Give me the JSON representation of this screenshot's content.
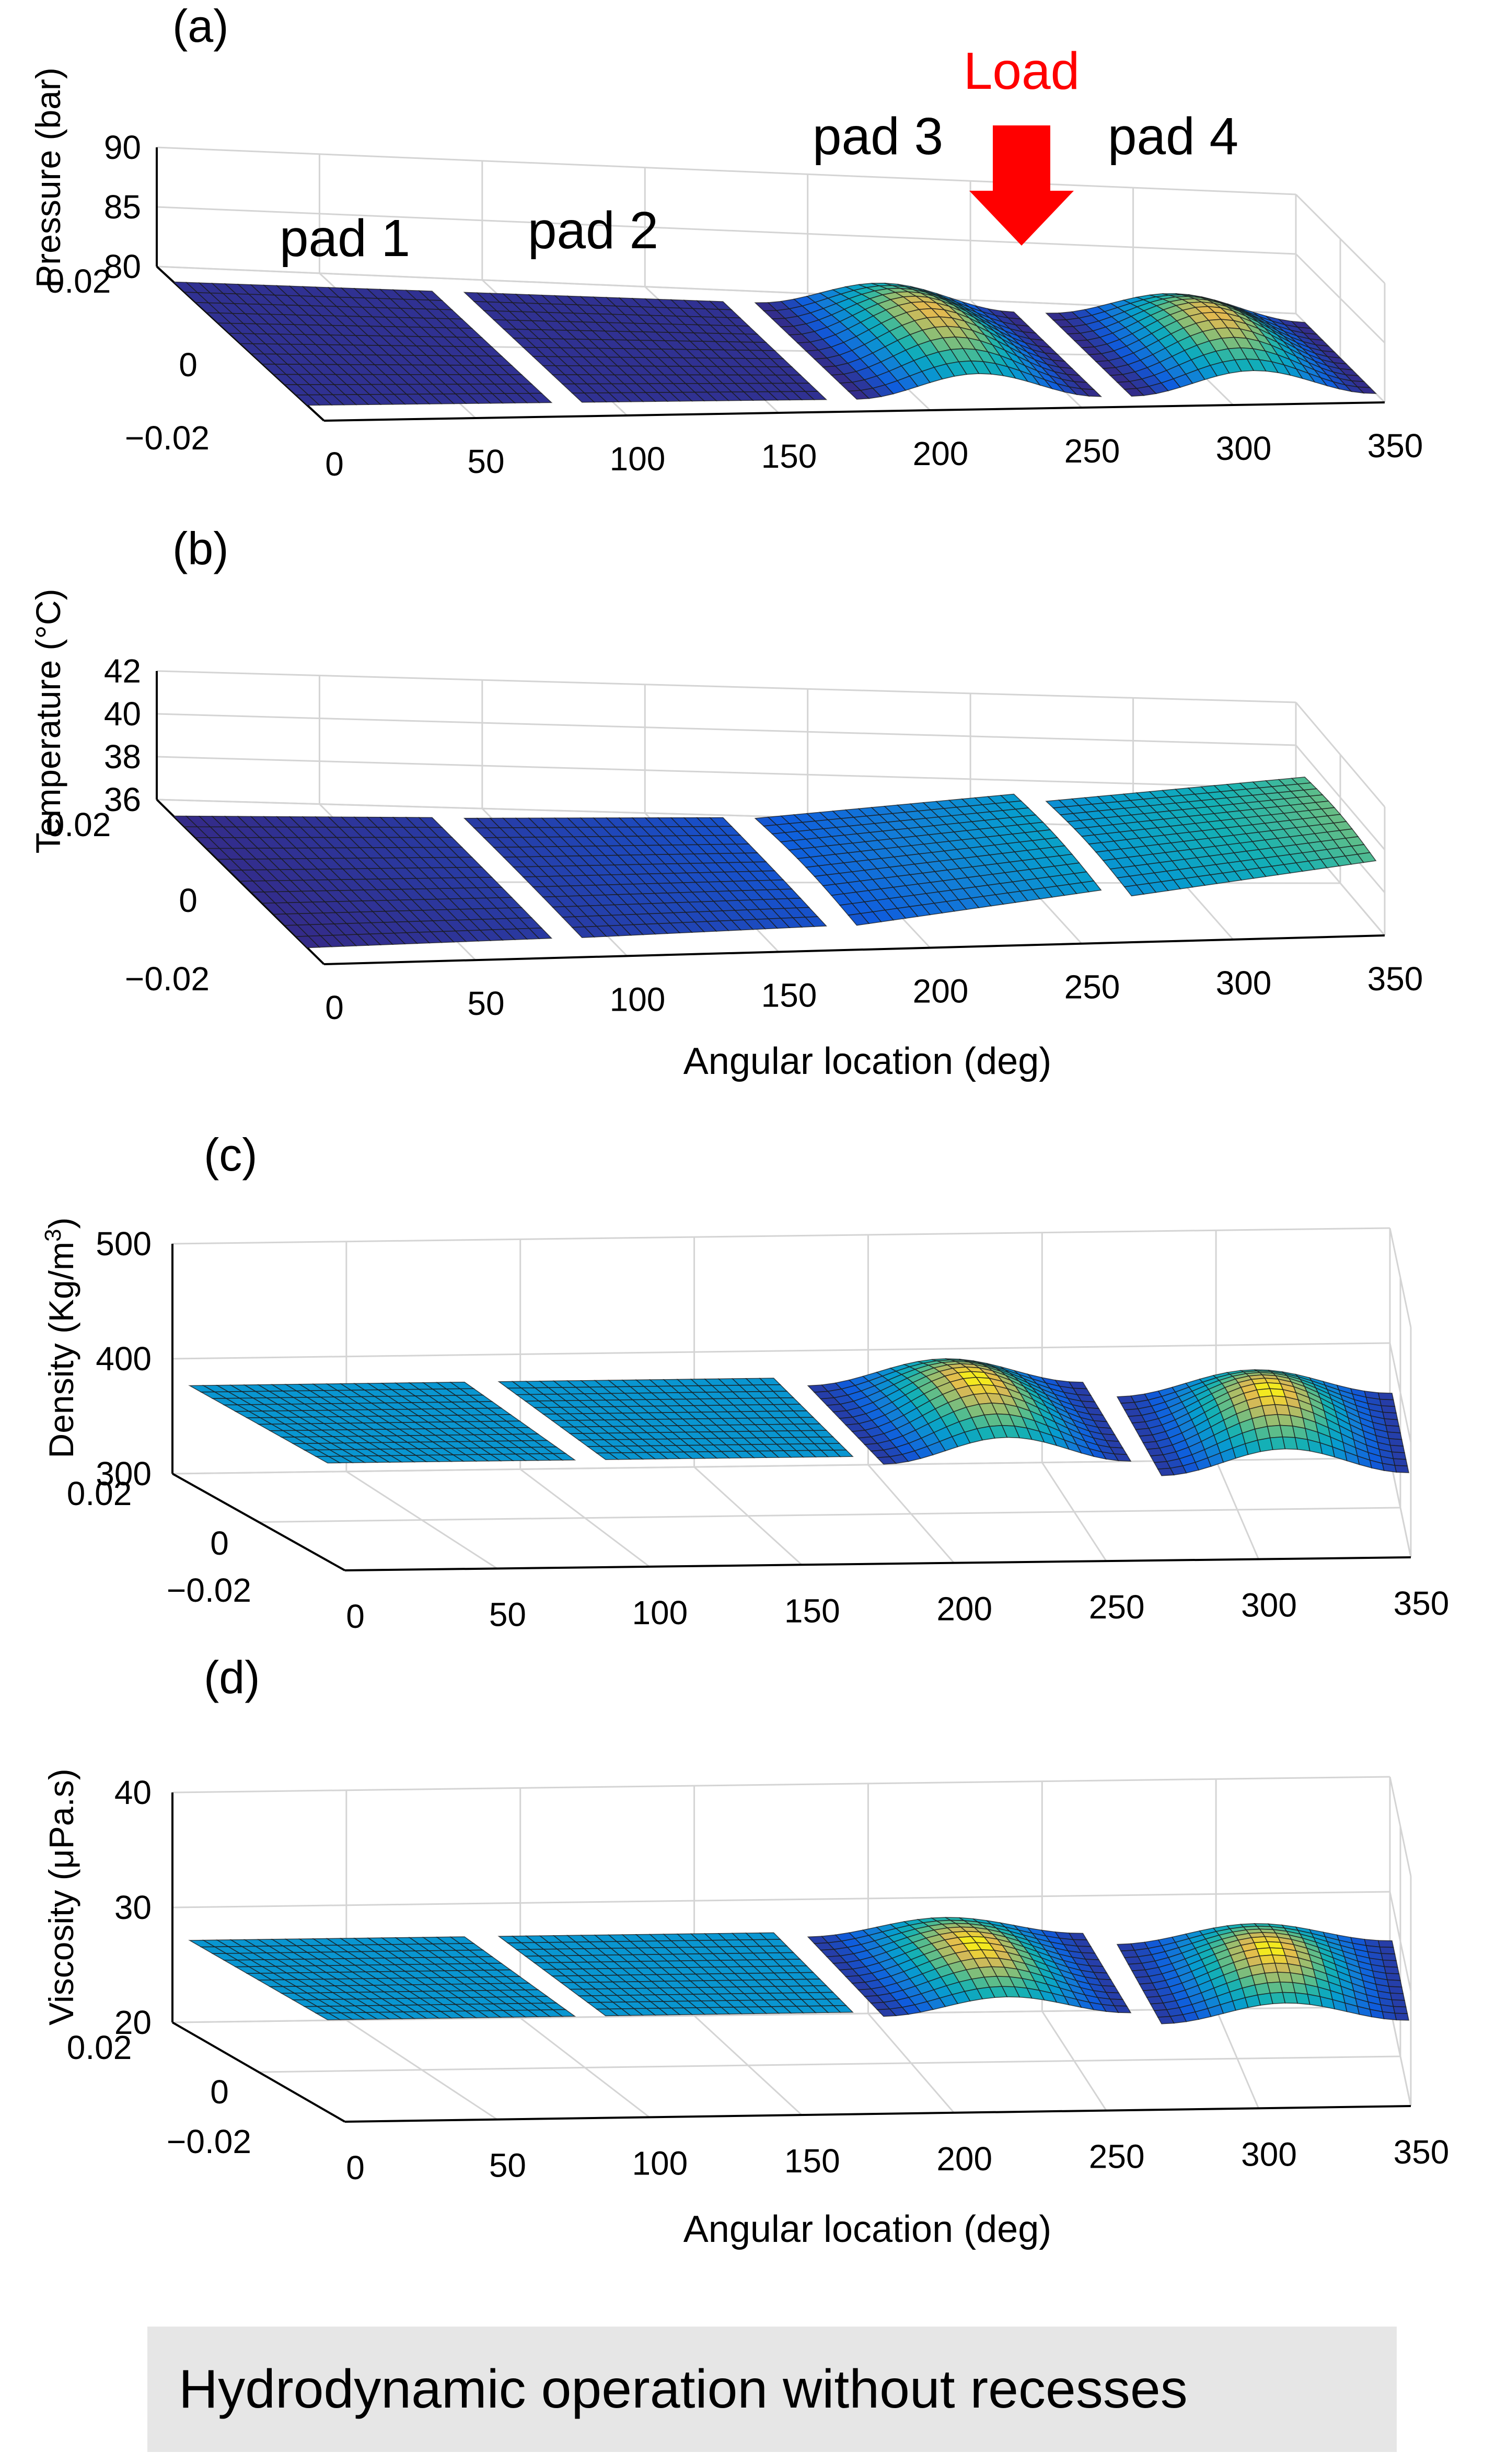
{
  "colors": {
    "load_arrow": "#ff0000",
    "axis_line": "#000000",
    "grid_line": "#d4d4d4",
    "caption_bg": "#e6e6e6"
  },
  "chart_data": [
    {
      "type": "surface3d",
      "panel_label": "(a)",
      "zlabel": "Pressure (bar)",
      "xlabel": "",
      "ylim": [
        -0.02,
        0.02
      ],
      "yticks": [
        "0.02",
        "0",
        "−0.02"
      ],
      "xlim": [
        0,
        350
      ],
      "xticks": [
        "0",
        "50",
        "100",
        "150",
        "200",
        "250",
        "300",
        "350"
      ],
      "zlim": [
        80,
        90
      ],
      "zticks": [
        "80",
        "85",
        "90"
      ],
      "annotations": {
        "pads": [
          "pad 1",
          "pad 2",
          "pad 3",
          "pad 4"
        ],
        "load": "Load"
      },
      "pads": [
        {
          "name": "pad 1",
          "x_range": [
            0,
            80
          ],
          "base": 80,
          "peak": 80,
          "shape": "flat"
        },
        {
          "name": "pad 2",
          "x_range": [
            90,
            170
          ],
          "base": 80,
          "peak": 80,
          "shape": "flat"
        },
        {
          "name": "pad 3",
          "x_range": [
            180,
            260
          ],
          "base": 80,
          "peak": 83.7,
          "shape": "bump"
        },
        {
          "name": "pad 4",
          "x_range": [
            270,
            350
          ],
          "base": 80,
          "peak": 83.7,
          "shape": "bump"
        }
      ]
    },
    {
      "type": "surface3d",
      "panel_label": "(b)",
      "zlabel": "Temperature (°C)",
      "xlabel": "Angular location (deg)",
      "ylim": [
        -0.02,
        0.02
      ],
      "yticks": [
        "0.02",
        "0",
        "−0.02"
      ],
      "xlim": [
        0,
        350
      ],
      "xticks": [
        "0",
        "50",
        "100",
        "150",
        "200",
        "250",
        "300",
        "350"
      ],
      "zlim": [
        36,
        42
      ],
      "zticks": [
        "36",
        "38",
        "40",
        "42"
      ],
      "pads": [
        {
          "name": "pad 1",
          "x_range": [
            0,
            80
          ],
          "start": 36,
          "end": 36.2,
          "shape": "ramp"
        },
        {
          "name": "pad 2",
          "x_range": [
            90,
            170
          ],
          "start": 36.2,
          "end": 36.5,
          "shape": "ramp"
        },
        {
          "name": "pad 3",
          "x_range": [
            180,
            260
          ],
          "start": 36.5,
          "end": 37.9,
          "shape": "ramp"
        },
        {
          "name": "pad 4",
          "x_range": [
            270,
            350
          ],
          "start": 37.6,
          "end": 39,
          "shape": "ramp"
        }
      ]
    },
    {
      "type": "surface3d",
      "panel_label": "(c)",
      "zlabel": "Density (Kg/m",
      "zlabel_sup": "3",
      "zlabel_tail": ")",
      "xlabel": "",
      "ylim": [
        -0.02,
        0.02
      ],
      "yticks": [
        "0.02",
        "0",
        "−0.02"
      ],
      "xlim": [
        0,
        350
      ],
      "xticks": [
        "0",
        "50",
        "100",
        "150",
        "200",
        "250",
        "300",
        "350"
      ],
      "zlim": [
        300,
        500
      ],
      "zticks": [
        "300",
        "400",
        "500"
      ],
      "pads": [
        {
          "name": "pad 1",
          "x_range": [
            0,
            80
          ],
          "base": 385,
          "peak": 385,
          "shape": "flat"
        },
        {
          "name": "pad 2",
          "x_range": [
            90,
            170
          ],
          "base": 385,
          "peak": 385,
          "shape": "flat"
        },
        {
          "name": "pad 3",
          "x_range": [
            180,
            260
          ],
          "base": 378,
          "peak": 418,
          "shape": "bump"
        },
        {
          "name": "pad 4",
          "x_range": [
            270,
            350
          ],
          "base": 365,
          "peak": 405,
          "shape": "bump"
        }
      ]
    },
    {
      "type": "surface3d",
      "panel_label": "(d)",
      "zlabel": "Viscosity (μPa.s)",
      "xlabel": "Angular location (deg)",
      "ylim": [
        -0.02,
        0.02
      ],
      "yticks": [
        "0.02",
        "0",
        "−0.02"
      ],
      "xlim": [
        0,
        350
      ],
      "xticks": [
        "0",
        "50",
        "100",
        "150",
        "200",
        "250",
        "300",
        "350"
      ],
      "zlim": [
        20,
        40
      ],
      "zticks": [
        "20",
        "30",
        "40"
      ],
      "pads": [
        {
          "name": "pad 1",
          "x_range": [
            0,
            80
          ],
          "base": 28,
          "peak": 28,
          "shape": "flat"
        },
        {
          "name": "pad 2",
          "x_range": [
            90,
            170
          ],
          "base": 28,
          "peak": 28,
          "shape": "flat"
        },
        {
          "name": "pad 3",
          "x_range": [
            180,
            260
          ],
          "base": 27.6,
          "peak": 30.4,
          "shape": "bump"
        },
        {
          "name": "pad 4",
          "x_range": [
            270,
            350
          ],
          "base": 26.6,
          "peak": 29.6,
          "shape": "bump"
        }
      ]
    }
  ],
  "caption": "Hydrodynamic operation without recesses"
}
